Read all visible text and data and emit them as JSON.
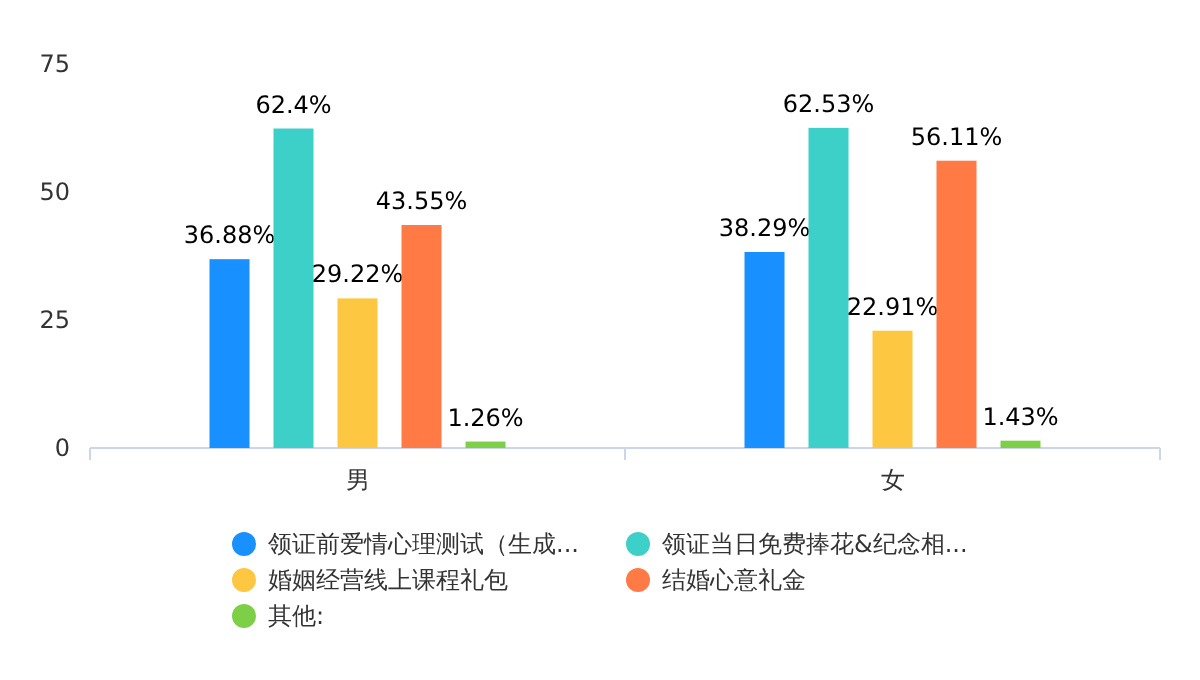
{
  "chart_data": {
    "type": "bar",
    "categories": [
      "男",
      "女"
    ],
    "series": [
      {
        "name": "领证前爱情心理测试（生成...",
        "color": "#1890ff",
        "values": [
          36.88,
          38.29
        ],
        "value_labels": [
          "36.88%",
          "38.29%"
        ]
      },
      {
        "name": "领证当日免费捧花&纪念相...",
        "color": "#3cd0c8",
        "values": [
          62.4,
          62.53
        ],
        "value_labels": [
          "62.4%",
          "62.53%"
        ]
      },
      {
        "name": "婚姻经营线上课程礼包",
        "color": "#fdc741",
        "values": [
          29.22,
          22.91
        ],
        "value_labels": [
          "29.22%",
          "22.91%"
        ]
      },
      {
        "name": "结婚心意礼金",
        "color": "#ff7a45",
        "values": [
          43.55,
          56.11
        ],
        "value_labels": [
          "43.55%",
          "56.11%"
        ]
      },
      {
        "name": "其他:",
        "color": "#7dcf48",
        "values": [
          1.26,
          1.43
        ],
        "value_labels": [
          "1.26%",
          "1.43%"
        ]
      }
    ],
    "ylim": [
      0,
      75
    ],
    "yticks": [
      0,
      25,
      50,
      75
    ],
    "grid": false,
    "legend": "bottom"
  }
}
